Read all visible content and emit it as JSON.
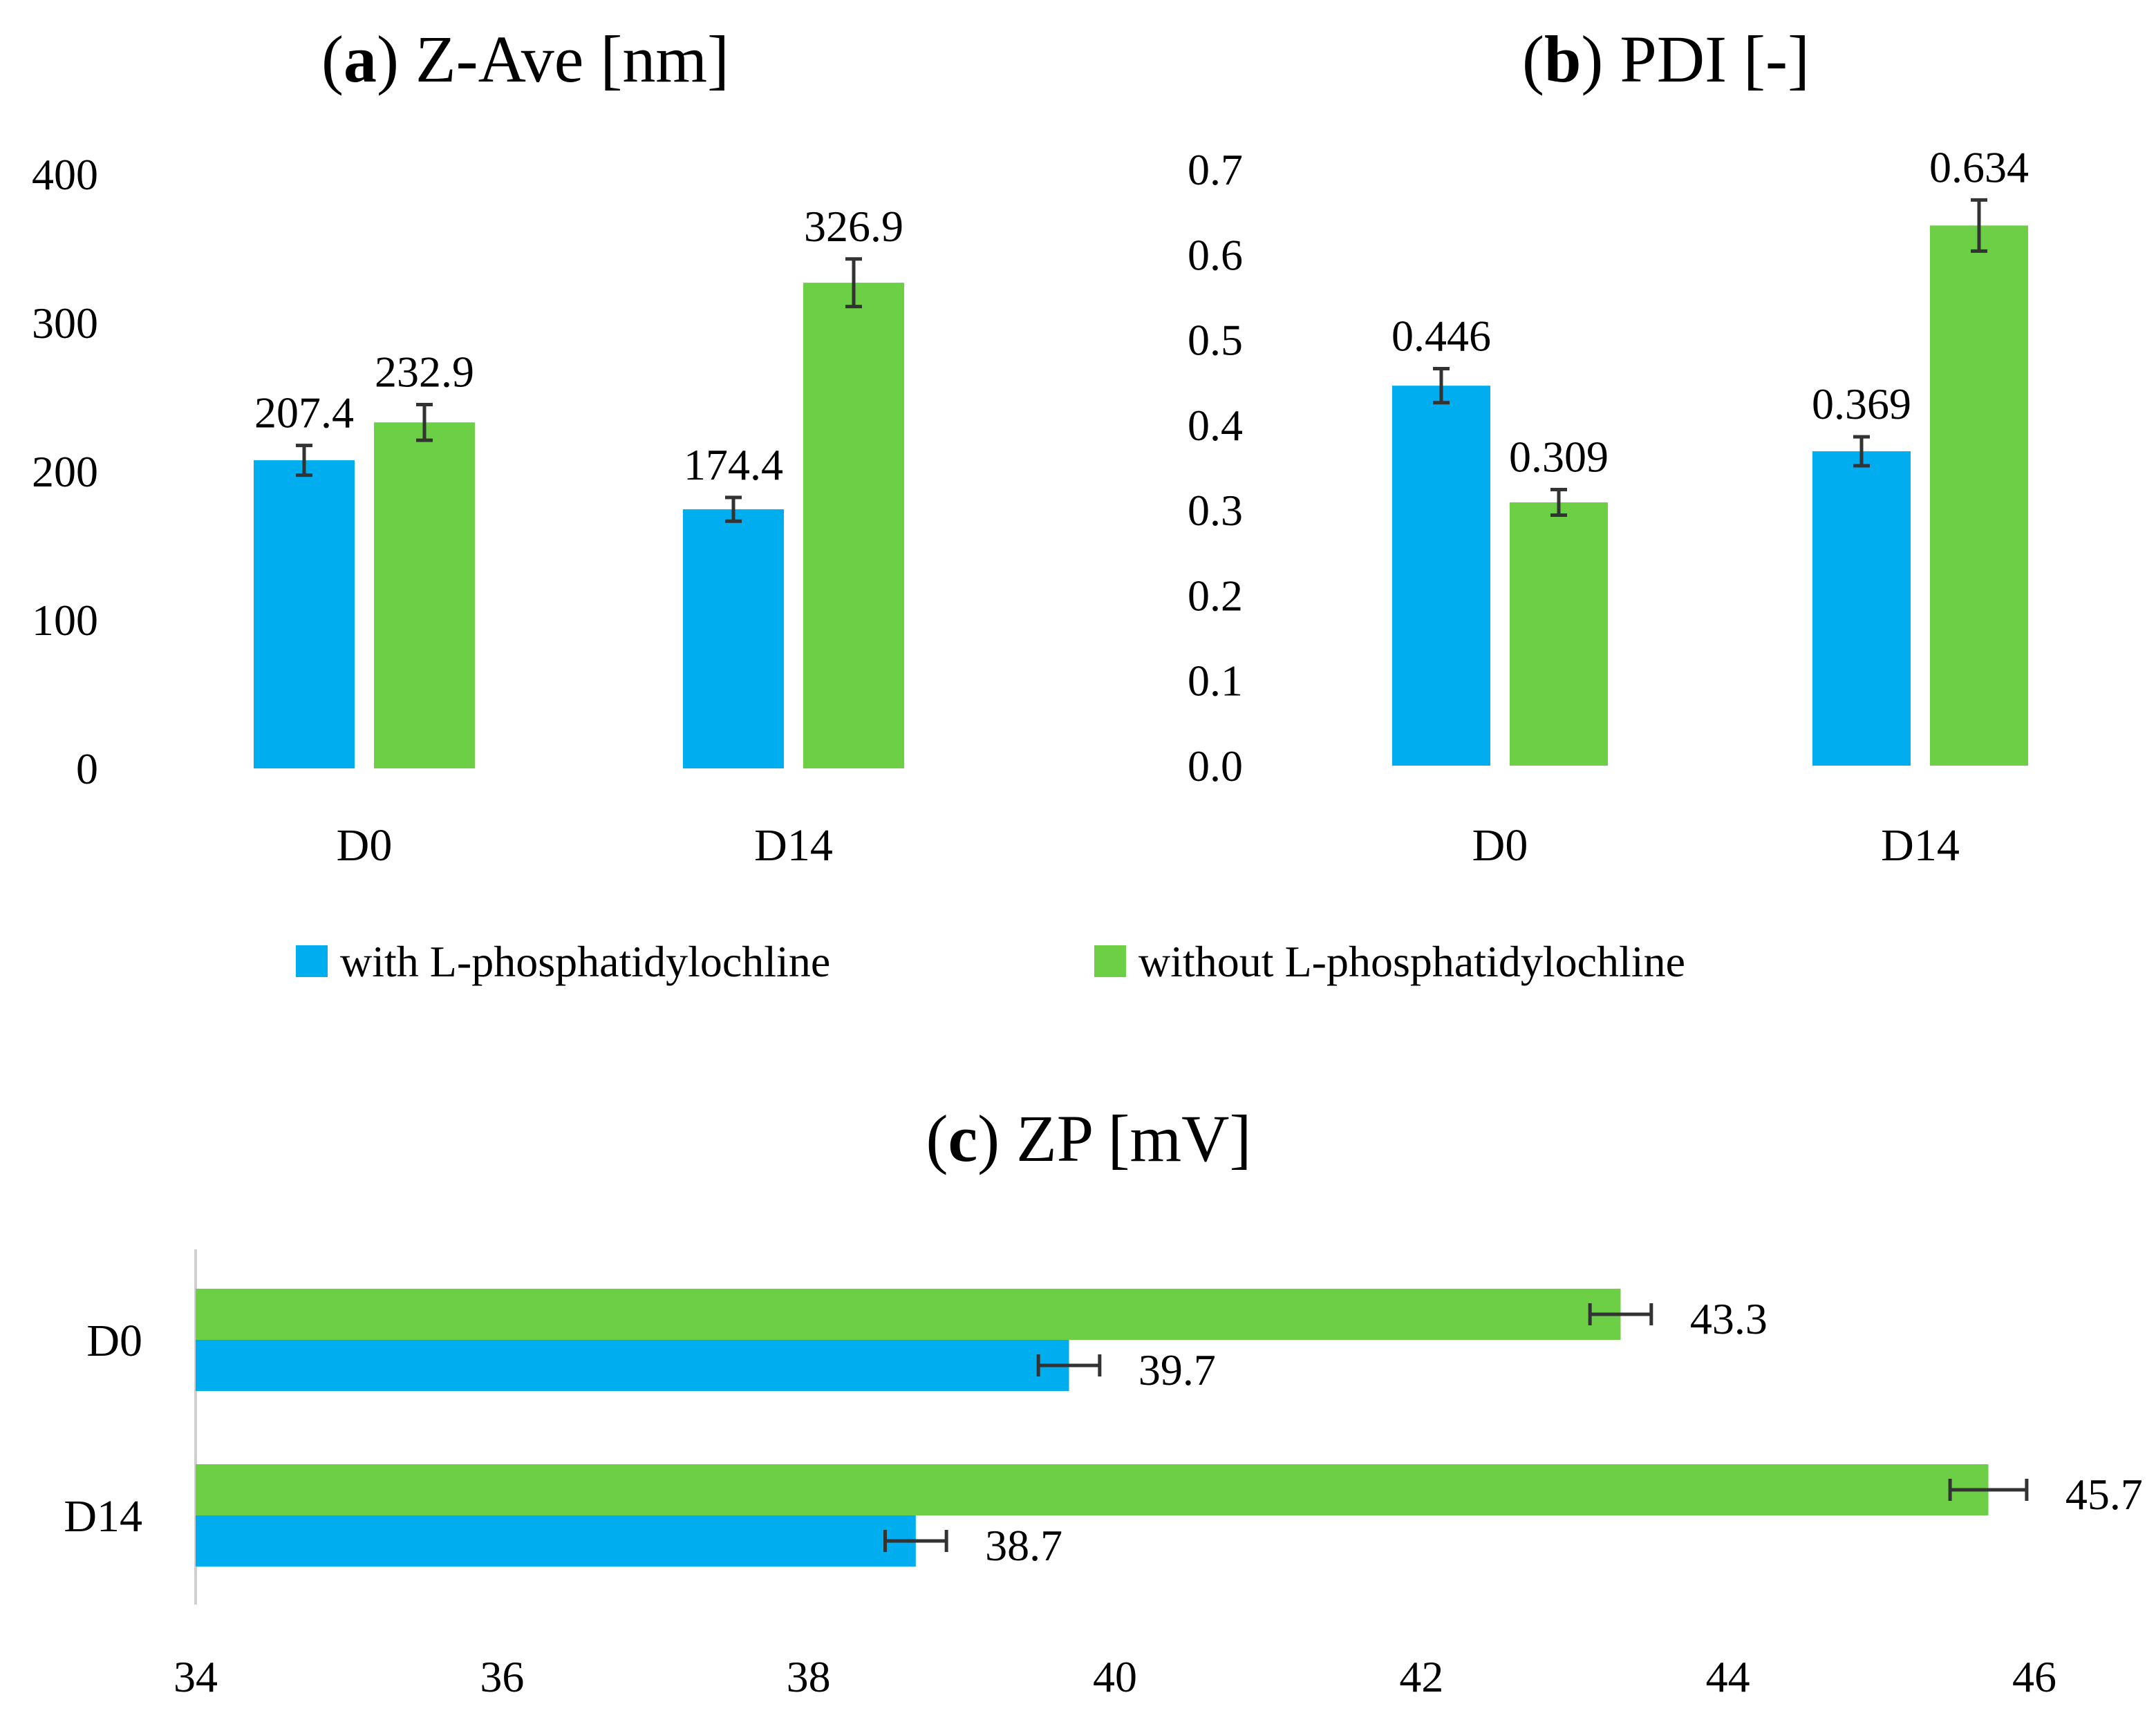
{
  "colors": {
    "with": "#00AEEF",
    "without": "#6CCF46",
    "error": "#333333",
    "axis": "#d0d0d0"
  },
  "legend": {
    "with_label": "with L-phosphatidylochline",
    "without_label": "without L-phosphatidylochline"
  },
  "chart_data": [
    {
      "id": "a",
      "type": "bar",
      "title_letter": "a",
      "title": "Z-Ave [nm]",
      "categories": [
        "D0",
        "D14"
      ],
      "series": [
        {
          "name": "with L-phosphatidylochline",
          "values": [
            207.4,
            174.4
          ],
          "labels": [
            "207.4",
            "174.4"
          ],
          "errors": [
            10,
            8
          ]
        },
        {
          "name": "without L-phosphatidylochline",
          "values": [
            232.9,
            326.9
          ],
          "labels": [
            "232.9",
            "326.9"
          ],
          "errors": [
            12,
            16
          ]
        }
      ],
      "yticks": [
        "0",
        "100",
        "200",
        "300",
        "400"
      ],
      "ylim": [
        0,
        400
      ],
      "xlabel": "",
      "ylabel": ""
    },
    {
      "id": "b",
      "type": "bar",
      "title_letter": "b",
      "title": "PDI [-]",
      "categories": [
        "D0",
        "D14"
      ],
      "series": [
        {
          "name": "with L-phosphatidylochline",
          "values": [
            0.446,
            0.369
          ],
          "labels": [
            "0.446",
            "0.369"
          ],
          "errors": [
            0.02,
            0.017
          ]
        },
        {
          "name": "without L-phosphatidylochline",
          "values": [
            0.309,
            0.634
          ],
          "labels": [
            "0.309",
            "0.634"
          ],
          "errors": [
            0.015,
            0.03
          ]
        }
      ],
      "yticks": [
        "0.0",
        "0.1",
        "0.2",
        "0.3",
        "0.4",
        "0.5",
        "0.6",
        "0.7"
      ],
      "ylim": [
        0,
        0.7
      ],
      "xlabel": "",
      "ylabel": ""
    },
    {
      "id": "c",
      "type": "bar",
      "orientation": "horizontal",
      "title_letter": "c",
      "title": "ZP [mV]",
      "categories": [
        "D0",
        "D14"
      ],
      "series": [
        {
          "name": "without L-phosphatidylochline",
          "values": [
            43.3,
            45.7
          ],
          "labels": [
            "43.3",
            "45.7"
          ],
          "errors": [
            0.2,
            0.25
          ]
        },
        {
          "name": "with L-phosphatidylochline",
          "values": [
            39.7,
            38.7
          ],
          "labels": [
            "39.7",
            "38.7"
          ],
          "errors": [
            0.2,
            0.2
          ]
        }
      ],
      "xticks": [
        "34",
        "36",
        "38",
        "40",
        "42",
        "44",
        "46"
      ],
      "xlim": [
        34,
        46
      ],
      "xlabel": "",
      "ylabel": ""
    }
  ]
}
